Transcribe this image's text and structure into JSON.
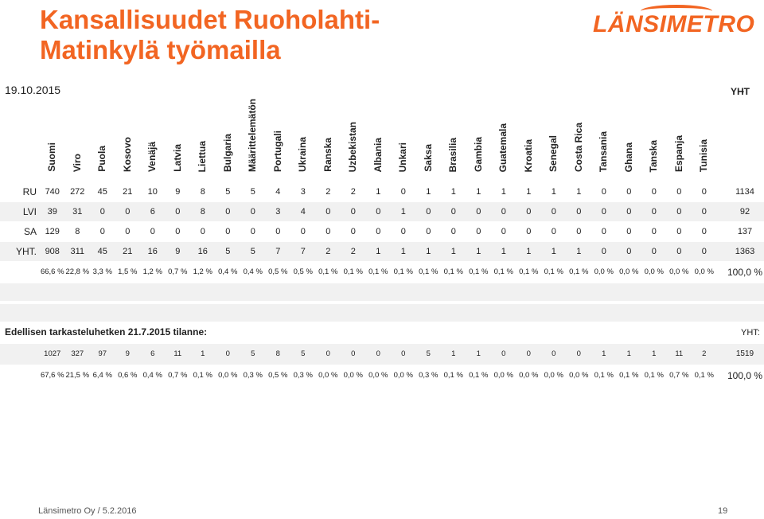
{
  "title": "Kansallisuudet Ruoholahti-Matinkylä työmailla",
  "logo_text": "LÄNSIMETRO",
  "date": "19.10.2015",
  "dot": ".",
  "countries": [
    "Suomi",
    "Viro",
    "Puola",
    "Kosovo",
    "Venäjä",
    "Latvia",
    "Liettua",
    "Bulgaria",
    "Määrittelemätön",
    "Portugali",
    "Ukraina",
    "Ranska",
    "Uzbekistan",
    "Albania",
    "Unkari",
    "Saksa",
    "Brasilia",
    "Gambia",
    "Guatemala",
    "Kroatia",
    "Senegal",
    "Costa Rica",
    "Tansania",
    "Ghana",
    "Tanska",
    "Espanja",
    "Tunisia"
  ],
  "total_header": "YHT",
  "rows": [
    {
      "label": "RU",
      "values": [
        "740",
        "272",
        "45",
        "21",
        "10",
        "9",
        "8",
        "5",
        "5",
        "4",
        "3",
        "2",
        "2",
        "1",
        "0",
        "1",
        "1",
        "1",
        "1",
        "1",
        "1",
        "1",
        "0",
        "0",
        "0",
        "0",
        "0"
      ],
      "total": "1134"
    },
    {
      "label": "LVI",
      "values": [
        "39",
        "31",
        "0",
        "0",
        "6",
        "0",
        "8",
        "0",
        "0",
        "3",
        "4",
        "0",
        "0",
        "0",
        "1",
        "0",
        "0",
        "0",
        "0",
        "0",
        "0",
        "0",
        "0",
        "0",
        "0",
        "0",
        "0"
      ],
      "total": "92"
    },
    {
      "label": "SA",
      "values": [
        "129",
        "8",
        "0",
        "0",
        "0",
        "0",
        "0",
        "0",
        "0",
        "0",
        "0",
        "0",
        "0",
        "0",
        "0",
        "0",
        "0",
        "0",
        "0",
        "0",
        "0",
        "0",
        "0",
        "0",
        "0",
        "0",
        "0"
      ],
      "total": "137"
    },
    {
      "label": "YHT.",
      "values": [
        "908",
        "311",
        "45",
        "21",
        "16",
        "9",
        "16",
        "5",
        "5",
        "7",
        "7",
        "2",
        "2",
        "1",
        "1",
        "1",
        "1",
        "1",
        "1",
        "1",
        "1",
        "1",
        "0",
        "0",
        "0",
        "0",
        "0"
      ],
      "total": "1363"
    }
  ],
  "pct_row": {
    "values": [
      "66,6 %",
      "22,8 %",
      "3,3 %",
      "1,5 %",
      "1,2 %",
      "0,7 %",
      "1,2 %",
      "0,4 %",
      "0,4 %",
      "0,5 %",
      "0,5 %",
      "0,1 %",
      "0,1 %",
      "0,1 %",
      "0,1 %",
      "0,1 %",
      "0,1 %",
      "0,1 %",
      "0,1 %",
      "0,1 %",
      "0,1 %",
      "0,1 %",
      "0,0 %",
      "0,0 %",
      "0,0 %",
      "0,0 %",
      "0,0 %"
    ],
    "total": "100,0 %"
  },
  "section2": {
    "title": "Edellisen tarkasteluhetken 21.7.2015 tilanne:",
    "total_label": "YHT:",
    "counts": [
      "1027",
      "327",
      "97",
      "9",
      "6",
      "11",
      "1",
      "0",
      "5",
      "8",
      "5",
      "0",
      "0",
      "0",
      "0",
      "5",
      "1",
      "1",
      "0",
      "0",
      "0",
      "0",
      "1",
      "1",
      "1",
      "11",
      "2"
    ],
    "counts_total": "1519",
    "pcts": [
      "67,6 %",
      "21,5 %",
      "6,4 %",
      "0,6 %",
      "0,4 %",
      "0,7 %",
      "0,1 %",
      "0,0 %",
      "0,3 %",
      "0,5 %",
      "0,3 %",
      "0,0 %",
      "0,0 %",
      "0,0 %",
      "0,0 %",
      "0,3 %",
      "0,1 %",
      "0,1 %",
      "0,0 %",
      "0,0 %",
      "0,0 %",
      "0,0 %",
      "0,1 %",
      "0,1 %",
      "0,1 %",
      "0,7 %",
      "0,1 %"
    ],
    "pcts_total": "100,0 %"
  },
  "footer": "Länsimetro Oy  /  5.2.2016",
  "page_number": "19"
}
